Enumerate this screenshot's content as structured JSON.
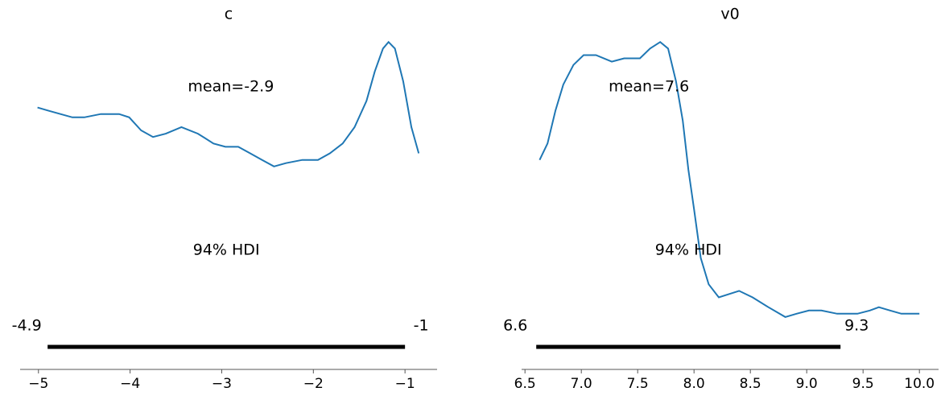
{
  "chart_data": [
    {
      "type": "density",
      "title": "c",
      "x": [
        -5.01,
        -4.89,
        -4.76,
        -4.63,
        -4.5,
        -4.32,
        -4.12,
        -4.01,
        -3.88,
        -3.75,
        -3.61,
        -3.44,
        -3.26,
        -3.09,
        -2.96,
        -2.82,
        -2.69,
        -2.56,
        -2.43,
        -2.3,
        -2.12,
        -1.95,
        -1.82,
        -1.68,
        -1.55,
        -1.42,
        -1.33,
        -1.24,
        -1.18,
        -1.11,
        -1.02,
        -0.93,
        -0.85
      ],
      "values": [
        0.8,
        0.79,
        0.78,
        0.77,
        0.77,
        0.78,
        0.78,
        0.77,
        0.73,
        0.71,
        0.72,
        0.74,
        0.72,
        0.69,
        0.68,
        0.68,
        0.66,
        0.64,
        0.62,
        0.63,
        0.64,
        0.64,
        0.66,
        0.69,
        0.74,
        0.82,
        0.91,
        0.98,
        1.0,
        0.98,
        0.88,
        0.74,
        0.66
      ],
      "color": "#1f77b4",
      "mean": {
        "value": -2.9,
        "label": "mean=-2.9"
      },
      "hdi_label": "94% HDI",
      "hdi": [
        -4.9,
        -1
      ],
      "xlim": [
        -5.2,
        -0.65
      ],
      "ylim": [
        0,
        1.03
      ],
      "xticks": [
        {
          "value": -5,
          "label": "−5"
        },
        {
          "value": -4,
          "label": "−4"
        },
        {
          "value": -3,
          "label": "−3"
        },
        {
          "value": -2,
          "label": "−2"
        },
        {
          "value": -1,
          "label": "−1"
        }
      ]
    },
    {
      "type": "density",
      "title": "v0",
      "x": [
        6.63,
        6.7,
        6.77,
        6.84,
        6.93,
        7.02,
        7.13,
        7.27,
        7.38,
        7.52,
        7.61,
        7.7,
        7.77,
        7.84,
        7.9,
        7.95,
        8.0,
        8.06,
        8.13,
        8.22,
        8.31,
        8.4,
        8.52,
        8.66,
        8.81,
        8.91,
        9.02,
        9.13,
        9.27,
        9.45,
        9.56,
        9.64,
        9.74,
        9.84,
        10.0
      ],
      "values": [
        0.64,
        0.69,
        0.79,
        0.87,
        0.93,
        0.96,
        0.96,
        0.94,
        0.95,
        0.95,
        0.98,
        1.0,
        0.98,
        0.88,
        0.76,
        0.61,
        0.49,
        0.34,
        0.26,
        0.22,
        0.23,
        0.24,
        0.22,
        0.19,
        0.16,
        0.17,
        0.18,
        0.18,
        0.17,
        0.17,
        0.18,
        0.19,
        0.18,
        0.17,
        0.17
      ],
      "color": "#1f77b4",
      "mean": {
        "value": 7.6,
        "label": "mean=7.6"
      },
      "hdi_label": "94% HDI",
      "hdi": [
        6.6,
        9.3
      ],
      "xlim": [
        6.47,
        10.17
      ],
      "ylim": [
        0,
        1.03
      ],
      "xticks": [
        6.5,
        {
          "value": 7,
          "label": "7.0"
        },
        7.5,
        {
          "value": 8,
          "label": "8.0"
        },
        8.5,
        {
          "value": 9,
          "label": "9.0"
        },
        9.5,
        {
          "value": 10,
          "label": "10.0"
        }
      ]
    }
  ]
}
